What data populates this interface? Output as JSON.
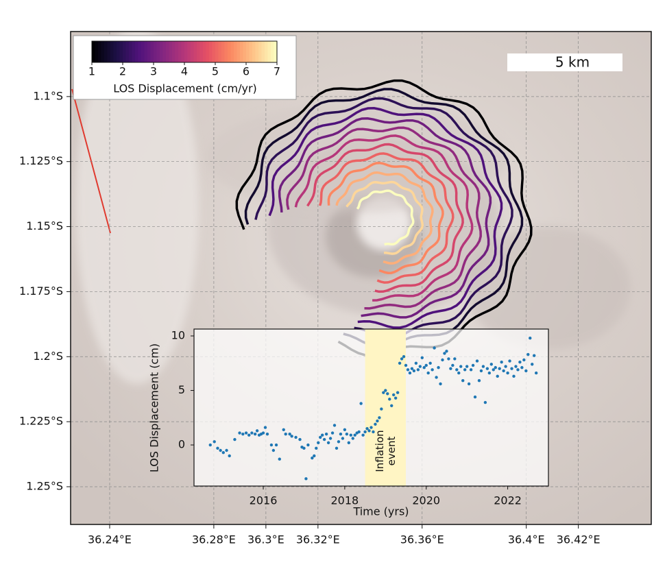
{
  "chart_data": [
    {
      "type": "contour_map",
      "xlim": [
        36.225,
        36.448
      ],
      "ylim": [
        -1.2645,
        -1.075
      ],
      "xticks": [
        {
          "value": 36.24,
          "label": "36.24°E"
        },
        {
          "value": 36.28,
          "label": "36.28°E"
        },
        {
          "value": 36.3,
          "label": "36.3°E"
        },
        {
          "value": 36.32,
          "label": "36.32°E"
        },
        {
          "value": 36.36,
          "label": "36.36°E"
        },
        {
          "value": 36.4,
          "label": "36.4°E"
        },
        {
          "value": 36.42,
          "label": "36.42°E"
        }
      ],
      "yticks": [
        {
          "value": -1.1,
          "label": "1.1°S"
        },
        {
          "value": -1.125,
          "label": "1.125°S"
        },
        {
          "value": -1.15,
          "label": "1.15°S"
        },
        {
          "value": -1.175,
          "label": "1.175°S"
        },
        {
          "value": -1.2,
          "label": "1.2°S"
        },
        {
          "value": -1.225,
          "label": "1.225°S"
        },
        {
          "value": -1.25,
          "label": "1.25°S"
        }
      ],
      "grid": true,
      "scale_bar_label": "5 km",
      "colorbar": {
        "label": "LOS Displacement (cm/yr)",
        "clim": [
          1,
          7
        ],
        "ticks": [
          1,
          2,
          3,
          4,
          5,
          6,
          7
        ],
        "colormap": "magma"
      },
      "contour_levels": [
        1,
        1.5,
        2,
        2.5,
        3,
        3.5,
        4,
        4.5,
        5,
        5.5,
        6,
        6.5,
        7
      ]
    },
    {
      "type": "scatter",
      "xlabel": "Time (yrs)",
      "ylabel": "LOS Displacement (cm)",
      "xlim": [
        2014.3,
        2023.0
      ],
      "ylim": [
        -3.77,
        10.63
      ],
      "xticks": [
        2016,
        2018,
        2020,
        2022
      ],
      "yticks": [
        0,
        5,
        10
      ],
      "color": "#1f77b4",
      "highlight_span": [
        2018.5,
        2019.5
      ],
      "highlight_color": "#fff5c4",
      "annotation": [
        "Inflation",
        "event"
      ],
      "x": [
        2014.7,
        2014.8,
        2014.88,
        2014.95,
        2015.02,
        2015.1,
        2015.17,
        2015.3,
        2015.42,
        2015.5,
        2015.58,
        2015.65,
        2015.72,
        2015.8,
        2015.85,
        2015.9,
        2015.95,
        2016.0,
        2016.05,
        2016.1,
        2016.2,
        2016.25,
        2016.32,
        2016.4,
        2016.5,
        2016.55,
        2016.65,
        2016.7,
        2016.8,
        2016.9,
        2016.95,
        2017.0,
        2017.05,
        2017.1,
        2017.2,
        2017.25,
        2017.3,
        2017.35,
        2017.4,
        2017.45,
        2017.5,
        2017.55,
        2017.6,
        2017.65,
        2017.7,
        2017.75,
        2017.8,
        2017.85,
        2017.9,
        2017.95,
        2018.0,
        2018.05,
        2018.1,
        2018.15,
        2018.2,
        2018.25,
        2018.3,
        2018.35,
        2018.4,
        2018.45,
        2018.5,
        2018.55,
        2018.6,
        2018.65,
        2018.7,
        2018.75,
        2018.8,
        2018.85,
        2018.9,
        2018.95,
        2019.0,
        2019.05,
        2019.1,
        2019.15,
        2019.2,
        2019.25,
        2019.3,
        2019.35,
        2019.4,
        2019.45,
        2019.5,
        2019.55,
        2019.6,
        2019.65,
        2019.7,
        2019.75,
        2019.8,
        2019.85,
        2019.9,
        2019.95,
        2020.0,
        2020.05,
        2020.1,
        2020.15,
        2020.2,
        2020.25,
        2020.3,
        2020.35,
        2020.4,
        2020.45,
        2020.5,
        2020.55,
        2020.6,
        2020.65,
        2020.7,
        2020.75,
        2020.8,
        2020.85,
        2020.9,
        2020.95,
        2021.0,
        2021.05,
        2021.1,
        2021.15,
        2021.2,
        2021.25,
        2021.3,
        2021.35,
        2021.4,
        2021.45,
        2021.5,
        2021.55,
        2021.6,
        2021.65,
        2021.7,
        2021.75,
        2021.8,
        2021.85,
        2021.9,
        2021.95,
        2022.0,
        2022.05,
        2022.1,
        2022.15,
        2022.2,
        2022.25,
        2022.3,
        2022.35,
        2022.4,
        2022.45,
        2022.5,
        2022.55,
        2022.6,
        2022.65,
        2022.7
      ],
      "values": [
        0.0,
        0.3,
        -0.3,
        -0.5,
        -0.7,
        -0.5,
        -1.0,
        0.5,
        1.1,
        1.0,
        1.1,
        0.9,
        1.1,
        1.0,
        1.3,
        0.9,
        1.0,
        1.1,
        1.6,
        1.0,
        0.0,
        -0.5,
        0.0,
        -1.3,
        1.4,
        1.0,
        1.0,
        0.8,
        0.7,
        0.5,
        -0.2,
        -0.3,
        -3.1,
        0.0,
        -1.2,
        -1.0,
        -0.3,
        0.2,
        0.7,
        0.9,
        0.5,
        1.0,
        0.2,
        0.6,
        1.1,
        1.8,
        -0.3,
        0.3,
        1.0,
        0.6,
        1.4,
        1.0,
        0.2,
        0.9,
        0.6,
        0.9,
        1.1,
        1.2,
        3.8,
        0.9,
        1.2,
        1.5,
        1.3,
        1.6,
        1.2,
        1.9,
        2.2,
        2.5,
        3.3,
        4.8,
        5.0,
        4.7,
        4.2,
        3.6,
        4.6,
        4.3,
        4.8,
        7.5,
        7.9,
        8.1,
        7.3,
        6.9,
        6.6,
        7.0,
        6.8,
        7.5,
        6.9,
        7.2,
        8.0,
        7.1,
        7.3,
        6.6,
        7.5,
        6.9,
        8.9,
        6.2,
        7.1,
        5.6,
        7.8,
        8.4,
        8.6,
        7.9,
        7.0,
        7.3,
        7.9,
        6.9,
        6.6,
        7.2,
        5.9,
        6.9,
        7.2,
        5.6,
        6.9,
        7.3,
        4.4,
        7.7,
        5.9,
        6.8,
        7.2,
        3.9,
        7.0,
        6.6,
        7.4,
        6.9,
        7.1,
        6.3,
        7.0,
        7.6,
        6.8,
        7.2,
        6.6,
        7.7,
        7.0,
        6.3,
        7.2,
        6.9,
        7.6,
        7.1,
        7.8,
        6.8,
        8.3,
        9.8,
        7.4,
        8.2,
        6.6
      ]
    }
  ]
}
